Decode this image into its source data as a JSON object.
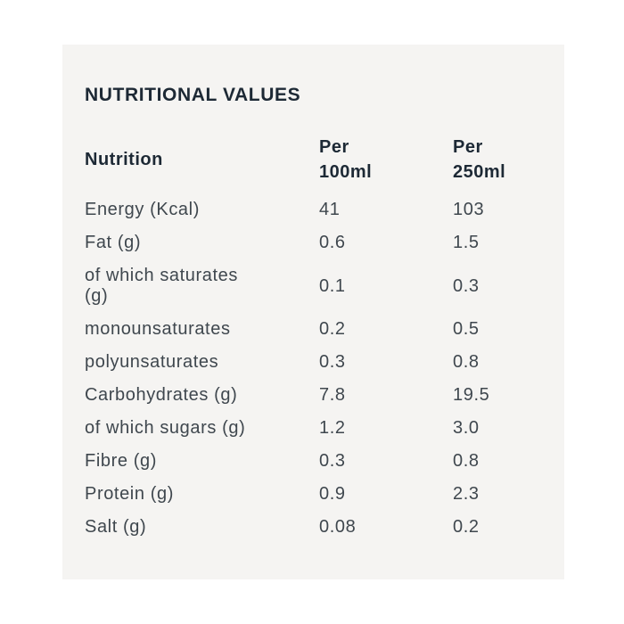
{
  "colors": {
    "page_background": "#ffffff",
    "card_background": "#f5f4f2",
    "heading_text": "#1d2935",
    "body_text": "#3f474e"
  },
  "card": {
    "title": "NUTRITIONAL VALUES"
  },
  "table": {
    "headers": {
      "nutrition": "Nutrition",
      "per_100ml": "Per 100ml",
      "per_250ml": "Per 250ml"
    },
    "rows": [
      {
        "label": "Energy (Kcal)",
        "per_100ml": "41",
        "per_250ml": "103"
      },
      {
        "label": "Fat (g)",
        "per_100ml": "0.6",
        "per_250ml": "1.5"
      },
      {
        "label": "of which saturates (g)",
        "per_100ml": "0.1",
        "per_250ml": "0.3"
      },
      {
        "label": "monounsaturates",
        "per_100ml": "0.2",
        "per_250ml": "0.5"
      },
      {
        "label": "polyunsaturates",
        "per_100ml": "0.3",
        "per_250ml": "0.8"
      },
      {
        "label": "Carbohydrates (g)",
        "per_100ml": "7.8",
        "per_250ml": "19.5"
      },
      {
        "label": "of which sugars (g)",
        "per_100ml": "1.2",
        "per_250ml": "3.0"
      },
      {
        "label": "Fibre (g)",
        "per_100ml": "0.3",
        "per_250ml": "0.8"
      },
      {
        "label": "Protein (g)",
        "per_100ml": "0.9",
        "per_250ml": "2.3"
      },
      {
        "label": "Salt (g)",
        "per_100ml": "0.08",
        "per_250ml": "0.2"
      }
    ]
  }
}
